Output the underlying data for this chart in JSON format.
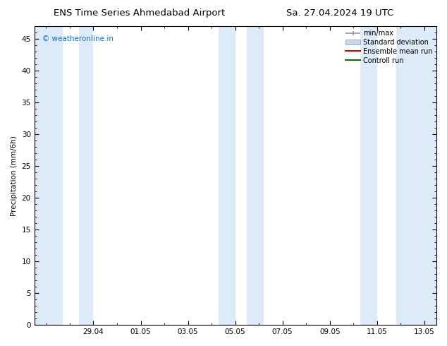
{
  "title_left": "ENS Time Series Ahmedabad Airport",
  "title_right": "Sa. 27.04.2024 19 UTC",
  "ylabel": "Precipitation (mm/6h)",
  "watermark": "© weatheronline.in",
  "watermark_color": "#1a6cc8",
  "ylim": [
    0,
    47
  ],
  "yticks": [
    0,
    5,
    10,
    15,
    20,
    25,
    30,
    35,
    40,
    45
  ],
  "xlim": [
    -0.5,
    16.5
  ],
  "xtick_positions": [
    2,
    4,
    6,
    8,
    10,
    12,
    14,
    16
  ],
  "xtick_labels": [
    "29.04",
    "01.05",
    "03.05",
    "05.05",
    "07.05",
    "09.05",
    "11.05",
    "13.05"
  ],
  "bg_color": "#ffffff",
  "shade_color": "#ddeaf7",
  "shade_regions": [
    [
      -0.5,
      0.7
    ],
    [
      1.4,
      2.0
    ],
    [
      7.3,
      8.0
    ],
    [
      8.5,
      9.2
    ],
    [
      13.3,
      14.0
    ],
    [
      14.8,
      16.5
    ]
  ],
  "legend_items": [
    {
      "label": "min/max",
      "color": "#999999",
      "style": "minmax"
    },
    {
      "label": "Standard deviation",
      "color": "#c5d8ee",
      "style": "box"
    },
    {
      "label": "Ensemble mean run",
      "color": "#dd0000",
      "style": "line"
    },
    {
      "label": "Controll run",
      "color": "#007700",
      "style": "line"
    }
  ],
  "title_fontsize": 9.5,
  "label_fontsize": 7.5,
  "tick_fontsize": 7.5,
  "legend_fontsize": 7.0
}
